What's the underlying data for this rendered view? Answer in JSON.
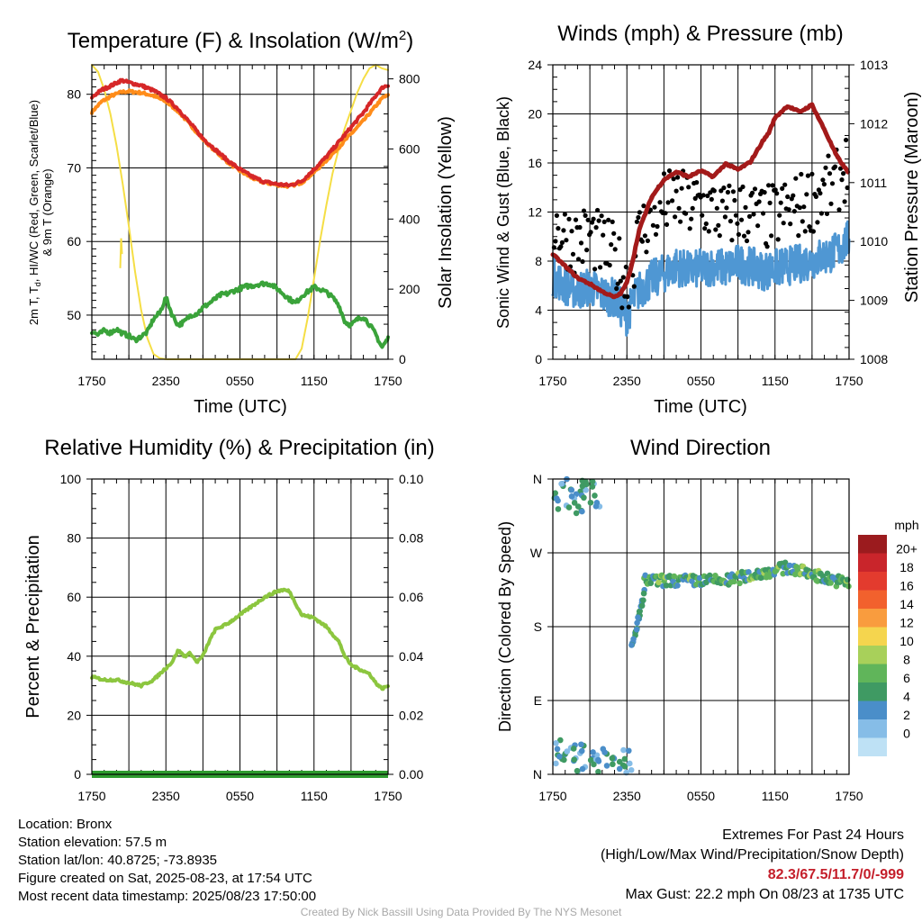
{
  "panels": {
    "temp": {
      "title": "Temperature (F) & Insolation (W/m²)",
      "ylabel_left_lines": [
        "2m T, Td, HI/WC (Red, Green, Scarlet/Blue)",
        "& 9m T (Orange)"
      ],
      "ylabel_right": "Solar Insolation (Yellow)",
      "xlabel": "Time (UTC)"
    },
    "wind": {
      "title": "Winds (mph) & Pressure (mb)",
      "ylabel_left": "Sonic Wind & Gust (Blue, Black)",
      "ylabel_right": "Station Pressure (Maroon)",
      "xlabel": "Time (UTC)"
    },
    "rh": {
      "title": "Relative Humidity (%) & Precipitation (in)",
      "ylabel_left": "Percent & Precipitation"
    },
    "dir": {
      "title": "Wind Direction",
      "ylabel_left": "Direction (Colored By Speed)",
      "colorbar_title": "mph"
    }
  },
  "chart_data": [
    {
      "id": "temp",
      "type": "line",
      "title": "Temperature (F) & Insolation (W/m²)",
      "xlabel": "Time (UTC)",
      "x_ticks": [
        "1750",
        "2350",
        "0550",
        "1150",
        "1750"
      ],
      "x_range_hours": [
        0,
        24
      ],
      "ylim_left": [
        44,
        84
      ],
      "y_ticks_left": [
        50,
        60,
        70,
        80
      ],
      "ylim_right": [
        0,
        840
      ],
      "y_ticks_right": [
        0,
        200,
        400,
        600,
        800
      ],
      "series": [
        {
          "name": "2m T",
          "color": "#d62728",
          "axis": "left",
          "x": [
            0,
            0.8,
            1.6,
            2.4,
            3,
            4,
            5,
            6,
            7,
            8,
            9,
            10,
            11,
            12,
            13,
            14,
            15,
            16,
            17,
            18,
            19,
            20,
            21,
            22,
            23,
            23.6,
            24
          ],
          "y": [
            79.6,
            80.6,
            81.2,
            81.9,
            81.6,
            81.2,
            80.5,
            79.5,
            78,
            76,
            74,
            72.5,
            71,
            69.8,
            68.8,
            68.1,
            67.8,
            67.6,
            68.2,
            69.8,
            71.5,
            73.5,
            75.5,
            77.5,
            79.8,
            81,
            81.2
          ]
        },
        {
          "name": "9m T",
          "color": "#ff8c1a",
          "axis": "left",
          "x": [
            0,
            0.8,
            1.6,
            2.4,
            3,
            4,
            5,
            6,
            7,
            8,
            9,
            10,
            11,
            12,
            13,
            14,
            15,
            16,
            17,
            18,
            19,
            20,
            21,
            22,
            23,
            23.6,
            24
          ],
          "y": [
            77.6,
            79,
            79.8,
            80.3,
            80.4,
            80.2,
            79.8,
            79,
            77.7,
            75.8,
            73.9,
            72.3,
            70.8,
            69.6,
            68.6,
            68,
            67.7,
            67.5,
            68,
            69.4,
            71,
            72.8,
            74.6,
            76.4,
            78.4,
            79.6,
            79.8
          ]
        },
        {
          "name": "Td",
          "color": "#3aa33a",
          "axis": "left",
          "x": [
            0,
            0.5,
            1,
            1.5,
            2,
            2.5,
            3,
            3.5,
            4,
            4.5,
            5,
            5.5,
            6,
            6.5,
            7,
            7.5,
            8,
            8.5,
            9,
            9.5,
            10,
            10.5,
            11,
            11.5,
            12,
            12.5,
            13,
            13.5,
            14,
            14.5,
            15,
            15.5,
            16,
            16.5,
            17,
            17.5,
            18,
            18.5,
            19,
            19.5,
            20,
            20.5,
            21,
            21.5,
            22,
            22.5,
            23,
            23.5,
            24
          ],
          "y": [
            47.8,
            47.3,
            47.9,
            47.6,
            48.1,
            47.5,
            47.2,
            46.6,
            47.1,
            47.7,
            49.5,
            50.3,
            52.4,
            50.1,
            48.6,
            49.1,
            50,
            50.2,
            51,
            51.6,
            52.2,
            52.8,
            52.9,
            53.3,
            53.6,
            53.9,
            54,
            54.2,
            54.3,
            54.2,
            53.6,
            52.9,
            52.2,
            51.6,
            52.6,
            53.2,
            53.8,
            53.5,
            53.1,
            52.4,
            51.4,
            49.1,
            48.6,
            49.4,
            49.8,
            48.7,
            47.4,
            45.6,
            46.8
          ]
        },
        {
          "name": "Solar Insolation",
          "color": "#f5de45",
          "axis": "right",
          "x": [
            0,
            0.5,
            1,
            1.5,
            2,
            2.5,
            3,
            3.5,
            4,
            4.5,
            5,
            5.5,
            6,
            16.5,
            17,
            17.5,
            18,
            18.5,
            19,
            19.5,
            20,
            20.5,
            21,
            21.5,
            22,
            22.5,
            23,
            23.5,
            24
          ],
          "y": [
            840,
            820,
            770,
            700,
            610,
            500,
            380,
            250,
            140,
            60,
            15,
            3,
            0,
            0,
            30,
            120,
            230,
            340,
            440,
            530,
            600,
            660,
            710,
            760,
            800,
            830,
            840,
            830,
            825
          ]
        }
      ]
    },
    {
      "id": "wind",
      "type": "line",
      "title": "Winds (mph) & Pressure (mb)",
      "xlabel": "Time (UTC)",
      "x_ticks": [
        "1750",
        "2350",
        "0550",
        "1150",
        "1750"
      ],
      "x_range_hours": [
        0,
        24
      ],
      "ylim_left": [
        0,
        24
      ],
      "y_ticks_left": [
        0,
        4,
        8,
        12,
        16,
        20,
        24
      ],
      "ylim_right": [
        1008,
        1013
      ],
      "y_ticks_right": [
        1008,
        1009,
        1010,
        1011,
        1012,
        1013
      ],
      "series": [
        {
          "name": "Sonic Wind",
          "color": "#4f97d3",
          "axis": "left",
          "x": [
            0,
            1,
            2,
            3,
            4,
            5,
            5.5,
            6,
            6.5,
            7,
            8,
            9,
            10,
            11,
            12,
            13,
            14,
            15,
            16,
            17,
            18,
            19,
            20,
            21,
            22,
            23,
            24
          ],
          "y": [
            6.8,
            6,
            5.6,
            5.9,
            5.3,
            5,
            4.2,
            3.5,
            4.8,
            5.6,
            6.5,
            7,
            7.6,
            7.2,
            7.4,
            7.6,
            7.4,
            7.8,
            7.6,
            7.2,
            7.4,
            7.6,
            7.8,
            8.1,
            8.4,
            8.8,
            9.8
          ]
        },
        {
          "name": "Gust",
          "color": "#000000",
          "axis": "left",
          "x": [
            0,
            1,
            2,
            3,
            4,
            5,
            5.5,
            6,
            6.5,
            7,
            8,
            9,
            10,
            11,
            12,
            13,
            14,
            15,
            16,
            17,
            18,
            19,
            20,
            21,
            22,
            23,
            24
          ],
          "y": [
            11.2,
            10.1,
            9.6,
            10.2,
            9.1,
            8.4,
            7.1,
            6.2,
            8.1,
            10.2,
            11.6,
            12.6,
            13.1,
            12.4,
            12.6,
            12.2,
            11.6,
            12.1,
            11.9,
            11.4,
            11.7,
            12.1,
            12.5,
            13.1,
            13.6,
            14.4,
            16.2
          ]
        },
        {
          "name": "Station Pressure",
          "color": "#a31a1a",
          "axis": "right",
          "x": [
            0,
            1,
            2,
            3,
            4,
            5,
            5.5,
            6,
            6.5,
            7,
            8,
            9,
            10,
            11,
            12,
            13,
            14,
            15,
            16,
            17,
            17.5,
            18,
            19,
            20,
            21,
            22,
            23,
            24
          ],
          "y": [
            1009.78,
            1009.58,
            1009.38,
            1009.28,
            1009.15,
            1009.05,
            1009.12,
            1009.3,
            1009.7,
            1010.2,
            1010.75,
            1011.05,
            1011.18,
            1011.1,
            1011.2,
            1011.1,
            1011.32,
            1011.22,
            1011.35,
            1011.7,
            1011.85,
            1012.1,
            1012.3,
            1012.2,
            1012.32,
            1011.9,
            1011.45,
            1011.15
          ]
        }
      ]
    },
    {
      "id": "rh",
      "type": "line",
      "title": "Relative Humidity (%) & Precipitation (in)",
      "x_ticks": [
        "1750",
        "2350",
        "0550",
        "1150",
        "1750"
      ],
      "x_range_hours": [
        0,
        24
      ],
      "ylim_left": [
        0,
        100
      ],
      "y_ticks_left": [
        0,
        20,
        40,
        60,
        80,
        100
      ],
      "ylim_right": [
        0,
        0.1
      ],
      "y_ticks_right": [
        "0.00",
        "0.02",
        "0.04",
        "0.06",
        "0.08",
        "0.10"
      ],
      "series": [
        {
          "name": "Relative Humidity",
          "color": "#8cc63f",
          "axis": "left",
          "x": [
            0,
            1,
            2,
            3,
            4,
            5,
            6,
            6.5,
            7,
            7.5,
            8,
            8.5,
            9,
            9.5,
            10,
            11,
            12,
            13,
            14,
            15,
            15.5,
            16,
            16.5,
            17,
            18,
            19,
            20,
            20.5,
            21,
            21.5,
            22,
            22.5,
            23,
            23.5,
            24
          ],
          "y": [
            33,
            32,
            32,
            31,
            30,
            32,
            36,
            38,
            42,
            40,
            41,
            38,
            40,
            45,
            49,
            51,
            54,
            57,
            60,
            62,
            62.5,
            62,
            58,
            54,
            53,
            50,
            45,
            40,
            37,
            36,
            35,
            34,
            31,
            29,
            30
          ]
        },
        {
          "name": "Precipitation",
          "color": "#2e9b2e",
          "axis": "right",
          "x": [
            0,
            24
          ],
          "y": [
            0,
            0
          ]
        }
      ]
    },
    {
      "id": "dir",
      "type": "scatter",
      "title": "Wind Direction",
      "x_ticks": [
        "1750",
        "2350",
        "0550",
        "1150",
        "1750"
      ],
      "x_range_hours": [
        0,
        24
      ],
      "ylim": [
        0,
        360
      ],
      "y_ticks": [
        "N",
        "E",
        "S",
        "W",
        "N"
      ],
      "colorbar": {
        "title": "mph",
        "labels": [
          "20+",
          "18",
          "16",
          "14",
          "12",
          "10",
          "8",
          "6",
          "4",
          "2",
          "0"
        ],
        "colors": [
          "#9b1b1e",
          "#c9252b",
          "#e33b2e",
          "#f2612d",
          "#f99c3e",
          "#f5d54e",
          "#a8d05a",
          "#60b55a",
          "#3f9a63",
          "#4a8ec9",
          "#86bde7",
          "#bee1f5"
        ]
      },
      "clusters": [
        {
          "x": [
            0,
            3.8
          ],
          "y": [
            315,
            360
          ],
          "speed": [
            3,
            8
          ]
        },
        {
          "x": [
            0,
            6.5
          ],
          "y": [
            2,
            60
          ],
          "speed": [
            3,
            8
          ]
        },
        {
          "x": [
            6.3,
            7.4
          ],
          "y": [
            150,
            225
          ],
          "speed": [
            4,
            8
          ]
        },
        {
          "x": [
            7.4,
            24
          ],
          "y": [
            225,
            260
          ],
          "speed": [
            5,
            10
          ]
        }
      ]
    }
  ],
  "station_info": [
    "Location: Bronx",
    "Station elevation: 57.5 m",
    "Station lat/lon: 40.8725; -73.8935",
    "Figure created on Sat, 2025-08-23, at 17:54 UTC",
    "Most recent data timestamp: 2025/08/23 17:50:00"
  ],
  "extremes": {
    "line1": "Extremes For Past 24 Hours",
    "line2": "(High/Low/Max Wind/Precipitation/Snow Depth)",
    "values": "82.3/67.5/11.7/0/-999",
    "gust": "Max Gust: 22.2 mph On 08/23 at 1735 UTC"
  },
  "credit": "Created By Nick Bassill Using Data Provided By The NYS Mesonet"
}
